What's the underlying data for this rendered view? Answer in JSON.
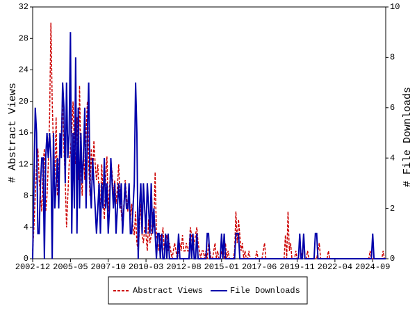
{
  "chart_data": {
    "type": "line",
    "y_label": "# Abstract Views",
    "y2_label": "# File Downloads",
    "x": [
      "2002-12",
      "2003-01",
      "2003-02",
      "2003-03",
      "2003-04",
      "2003-05",
      "2003-06",
      "2003-07",
      "2003-08",
      "2003-09",
      "2003-10",
      "2003-11",
      "2003-12",
      "2004-01",
      "2004-02",
      "2004-03",
      "2004-04",
      "2004-05",
      "2004-06",
      "2004-07",
      "2004-08",
      "2004-09",
      "2004-10",
      "2004-11",
      "2004-12",
      "2005-01",
      "2005-02",
      "2005-03",
      "2005-04",
      "2005-05",
      "2005-06",
      "2005-07",
      "2005-08",
      "2005-09",
      "2005-10",
      "2005-11",
      "2005-12",
      "2006-01",
      "2006-02",
      "2006-03",
      "2006-04",
      "2006-05",
      "2006-06",
      "2006-07",
      "2006-08",
      "2006-09",
      "2006-10",
      "2006-11",
      "2006-12",
      "2007-01",
      "2007-02",
      "2007-03",
      "2007-04",
      "2007-05",
      "2007-06",
      "2007-07",
      "2007-08",
      "2007-09",
      "2007-10",
      "2007-11",
      "2007-12",
      "2008-01",
      "2008-02",
      "2008-03",
      "2008-04",
      "2008-05",
      "2008-06",
      "2008-07",
      "2008-08",
      "2008-09",
      "2008-10",
      "2008-11",
      "2008-12",
      "2009-01",
      "2009-02",
      "2009-03",
      "2009-04",
      "2009-05",
      "2009-06",
      "2009-07",
      "2009-08",
      "2009-09",
      "2009-10",
      "2009-11",
      "2009-12",
      "2010-01",
      "2010-02",
      "2010-03",
      "2010-04",
      "2010-05",
      "2010-06",
      "2010-07",
      "2010-08",
      "2010-09",
      "2010-10",
      "2010-11",
      "2010-12",
      "2011-01",
      "2011-02",
      "2011-03",
      "2011-04",
      "2011-05",
      "2011-06",
      "2011-07",
      "2011-08",
      "2011-09",
      "2011-10",
      "2011-11",
      "2011-12",
      "2012-01",
      "2012-02",
      "2012-03",
      "2012-04",
      "2012-05",
      "2012-06",
      "2012-07",
      "2012-08",
      "2012-09",
      "2012-10",
      "2012-11",
      "2012-12",
      "2013-01",
      "2013-02",
      "2013-03",
      "2013-04",
      "2013-05",
      "2013-06",
      "2013-07",
      "2013-08",
      "2013-09",
      "2013-10",
      "2013-11",
      "2013-12",
      "2014-01",
      "2014-02",
      "2014-03",
      "2014-04",
      "2014-05",
      "2014-06",
      "2014-07",
      "2014-08",
      "2014-09",
      "2014-10",
      "2014-11",
      "2014-12",
      "2015-01",
      "2015-02",
      "2015-03",
      "2015-04",
      "2015-05",
      "2015-06",
      "2015-07",
      "2015-08",
      "2015-09",
      "2015-10",
      "2015-11",
      "2015-12",
      "2016-01",
      "2016-02",
      "2016-03",
      "2016-04",
      "2016-05",
      "2016-06",
      "2016-07",
      "2016-08",
      "2016-09",
      "2016-10",
      "2016-11",
      "2016-12",
      "2017-01",
      "2017-02",
      "2017-03",
      "2017-04",
      "2017-05",
      "2017-06",
      "2017-07",
      "2017-08",
      "2017-09",
      "2017-10",
      "2017-11",
      "2017-12",
      "2018-01",
      "2018-02",
      "2018-03",
      "2018-04",
      "2018-05",
      "2018-06",
      "2018-07",
      "2018-08",
      "2018-09",
      "2018-10",
      "2018-11",
      "2018-12",
      "2019-01",
      "2019-02",
      "2019-03",
      "2019-04",
      "2019-05",
      "2019-06",
      "2019-07",
      "2019-08",
      "2019-09",
      "2019-10",
      "2019-11",
      "2019-12",
      "2020-01",
      "2020-02",
      "2020-03",
      "2020-04",
      "2020-05",
      "2020-06",
      "2020-07",
      "2020-08",
      "2020-09",
      "2020-10",
      "2020-11",
      "2020-12",
      "2021-01",
      "2021-02",
      "2021-03",
      "2021-04",
      "2021-05",
      "2021-06",
      "2021-07",
      "2021-08",
      "2021-09",
      "2021-10",
      "2021-11",
      "2021-12",
      "2022-01",
      "2022-02",
      "2022-03",
      "2022-04",
      "2022-05",
      "2022-06",
      "2022-07",
      "2022-08",
      "2022-09",
      "2022-10",
      "2022-11",
      "2022-12",
      "2023-01",
      "2023-02",
      "2023-03",
      "2023-04",
      "2023-05",
      "2023-06",
      "2023-07",
      "2023-08",
      "2023-09",
      "2023-10",
      "2023-11",
      "2023-12",
      "2024-01",
      "2024-02",
      "2024-03",
      "2024-04",
      "2024-05",
      "2024-06",
      "2024-07",
      "2024-08",
      "2024-09",
      "2024-10",
      "2024-11",
      "2024-12",
      "2025-01",
      "2025-02",
      "2025-03",
      "2025-04",
      "2025-05",
      "2025-06",
      "2025-07"
    ],
    "series": [
      {
        "name": "Abstract Views",
        "color": "#cc0000",
        "line_style": "dashed",
        "axis": "y",
        "values": [
          1,
          4,
          8,
          12,
          14,
          10,
          8,
          6,
          12,
          14,
          6,
          8,
          12,
          18,
          30,
          20,
          14,
          10,
          18,
          8,
          12,
          14,
          16,
          21,
          14,
          10,
          4,
          8,
          12,
          14,
          16,
          20,
          14,
          12,
          18,
          10,
          22,
          12,
          8,
          14,
          10,
          16,
          20,
          12,
          8,
          14,
          10,
          15,
          12,
          10,
          12,
          8,
          6,
          12,
          8,
          5,
          10,
          13,
          6,
          9,
          12,
          11,
          8,
          10,
          7,
          9,
          12,
          8,
          6,
          4,
          7,
          10,
          8,
          6,
          9,
          5,
          7,
          4,
          3,
          6,
          2,
          1,
          4,
          7,
          3,
          2,
          4,
          3,
          1,
          5,
          2,
          3,
          6,
          4,
          11,
          3,
          2,
          1,
          3,
          2,
          4,
          1,
          2,
          3,
          1,
          2,
          1,
          0,
          1,
          2,
          1,
          0,
          1,
          2,
          1,
          3,
          1,
          1,
          2,
          1,
          1,
          4,
          3,
          1,
          2,
          3,
          4,
          2,
          1,
          0,
          1,
          1,
          0,
          1,
          0,
          2,
          1,
          0,
          0,
          1,
          2,
          0,
          1,
          0,
          0,
          1,
          0,
          0,
          2,
          0,
          1,
          0,
          0,
          0,
          0,
          1,
          6,
          2,
          5,
          3,
          1,
          2,
          0,
          1,
          0,
          0,
          1,
          0,
          0,
          0,
          0,
          0,
          1,
          0,
          0,
          0,
          0,
          1,
          2,
          0,
          0,
          0,
          0,
          0,
          0,
          0,
          0,
          0,
          0,
          0,
          0,
          0,
          0,
          0,
          3,
          0,
          6,
          1,
          2,
          0,
          0,
          0,
          1,
          0,
          0,
          0,
          0,
          1,
          2,
          0,
          0,
          1,
          0,
          0,
          0,
          0,
          0,
          0,
          0,
          1,
          2,
          0,
          0,
          0,
          0,
          0,
          0,
          1,
          0,
          0,
          0,
          0,
          0,
          0,
          0,
          0,
          0,
          0,
          0,
          0,
          0,
          0,
          0,
          0,
          0,
          0,
          0,
          0,
          0,
          0,
          0,
          0,
          0,
          0,
          0,
          0,
          0,
          0,
          0,
          1,
          0,
          0,
          0,
          0,
          0,
          0,
          0,
          0,
          0,
          1,
          0,
          0
        ]
      },
      {
        "name": "File Downloads",
        "color": "#0000aa",
        "line_style": "solid",
        "axis": "y2",
        "values": [
          0,
          3,
          6,
          5,
          1,
          1,
          3,
          4,
          4,
          0,
          4,
          5,
          4,
          5,
          4,
          0,
          5,
          2,
          3,
          4,
          2,
          5,
          4,
          7,
          6,
          3,
          7,
          4,
          5,
          9,
          1,
          5,
          2,
          8,
          1,
          6,
          2,
          5,
          3,
          4,
          6,
          2,
          5,
          7,
          3,
          2,
          4,
          3,
          2,
          1,
          2,
          3,
          1,
          3,
          2,
          4,
          2,
          3,
          1,
          2,
          4,
          3,
          2,
          3,
          1,
          2,
          3,
          2,
          3,
          1,
          2,
          3,
          2,
          2,
          3,
          1,
          1,
          2,
          3,
          7,
          5,
          0,
          2,
          3,
          1,
          3,
          2,
          1,
          3,
          2,
          1,
          3,
          1,
          2,
          1,
          0,
          1,
          1,
          0,
          1,
          0,
          0,
          1,
          0,
          1,
          0,
          0,
          0,
          0,
          0,
          0,
          0,
          1,
          0,
          0,
          0,
          0,
          0,
          0,
          0,
          0,
          1,
          0,
          1,
          0,
          0,
          1,
          0,
          0,
          0,
          0,
          0,
          0,
          0,
          1,
          1,
          0,
          0,
          0,
          0,
          0,
          0,
          0,
          0,
          0,
          1,
          0,
          1,
          0,
          0,
          0,
          0,
          0,
          0,
          0,
          0,
          1,
          1,
          1,
          0,
          0,
          0,
          0,
          0,
          0,
          0,
          0,
          0,
          0,
          0,
          0,
          0,
          0,
          0,
          0,
          0,
          0,
          0,
          0,
          0,
          0,
          0,
          0,
          0,
          0,
          0,
          0,
          0,
          0,
          0,
          0,
          0,
          0,
          0,
          0,
          0,
          0,
          0,
          0,
          0,
          0,
          0,
          0,
          0,
          0,
          1,
          0,
          0,
          1,
          0,
          0,
          0,
          0,
          0,
          0,
          0,
          0,
          1,
          1,
          0,
          0,
          0,
          0,
          0,
          0,
          0,
          0,
          0,
          0,
          0,
          0,
          0,
          0,
          0,
          0,
          0,
          0,
          0,
          0,
          0,
          0,
          0,
          0,
          0,
          0,
          0,
          0,
          0,
          0,
          0,
          0,
          0,
          0,
          0,
          0,
          0,
          0,
          0,
          0,
          0,
          0,
          1,
          0,
          0,
          0,
          0,
          0,
          0,
          0,
          0,
          0,
          0
        ]
      }
    ],
    "xticks": [
      "2002-12",
      "2005-05",
      "2007-10",
      "2010-03",
      "2012-08",
      "2015-01",
      "2017-06",
      "2019-11",
      "2022-04",
      "2024-09"
    ],
    "ylim": [
      0,
      32
    ],
    "yticks": [
      0,
      4,
      8,
      12,
      16,
      20,
      24,
      28,
      32
    ],
    "y2lim": [
      0,
      10
    ],
    "y2ticks": [
      0,
      2,
      4,
      6,
      8,
      10
    ],
    "legend": "bottom"
  }
}
